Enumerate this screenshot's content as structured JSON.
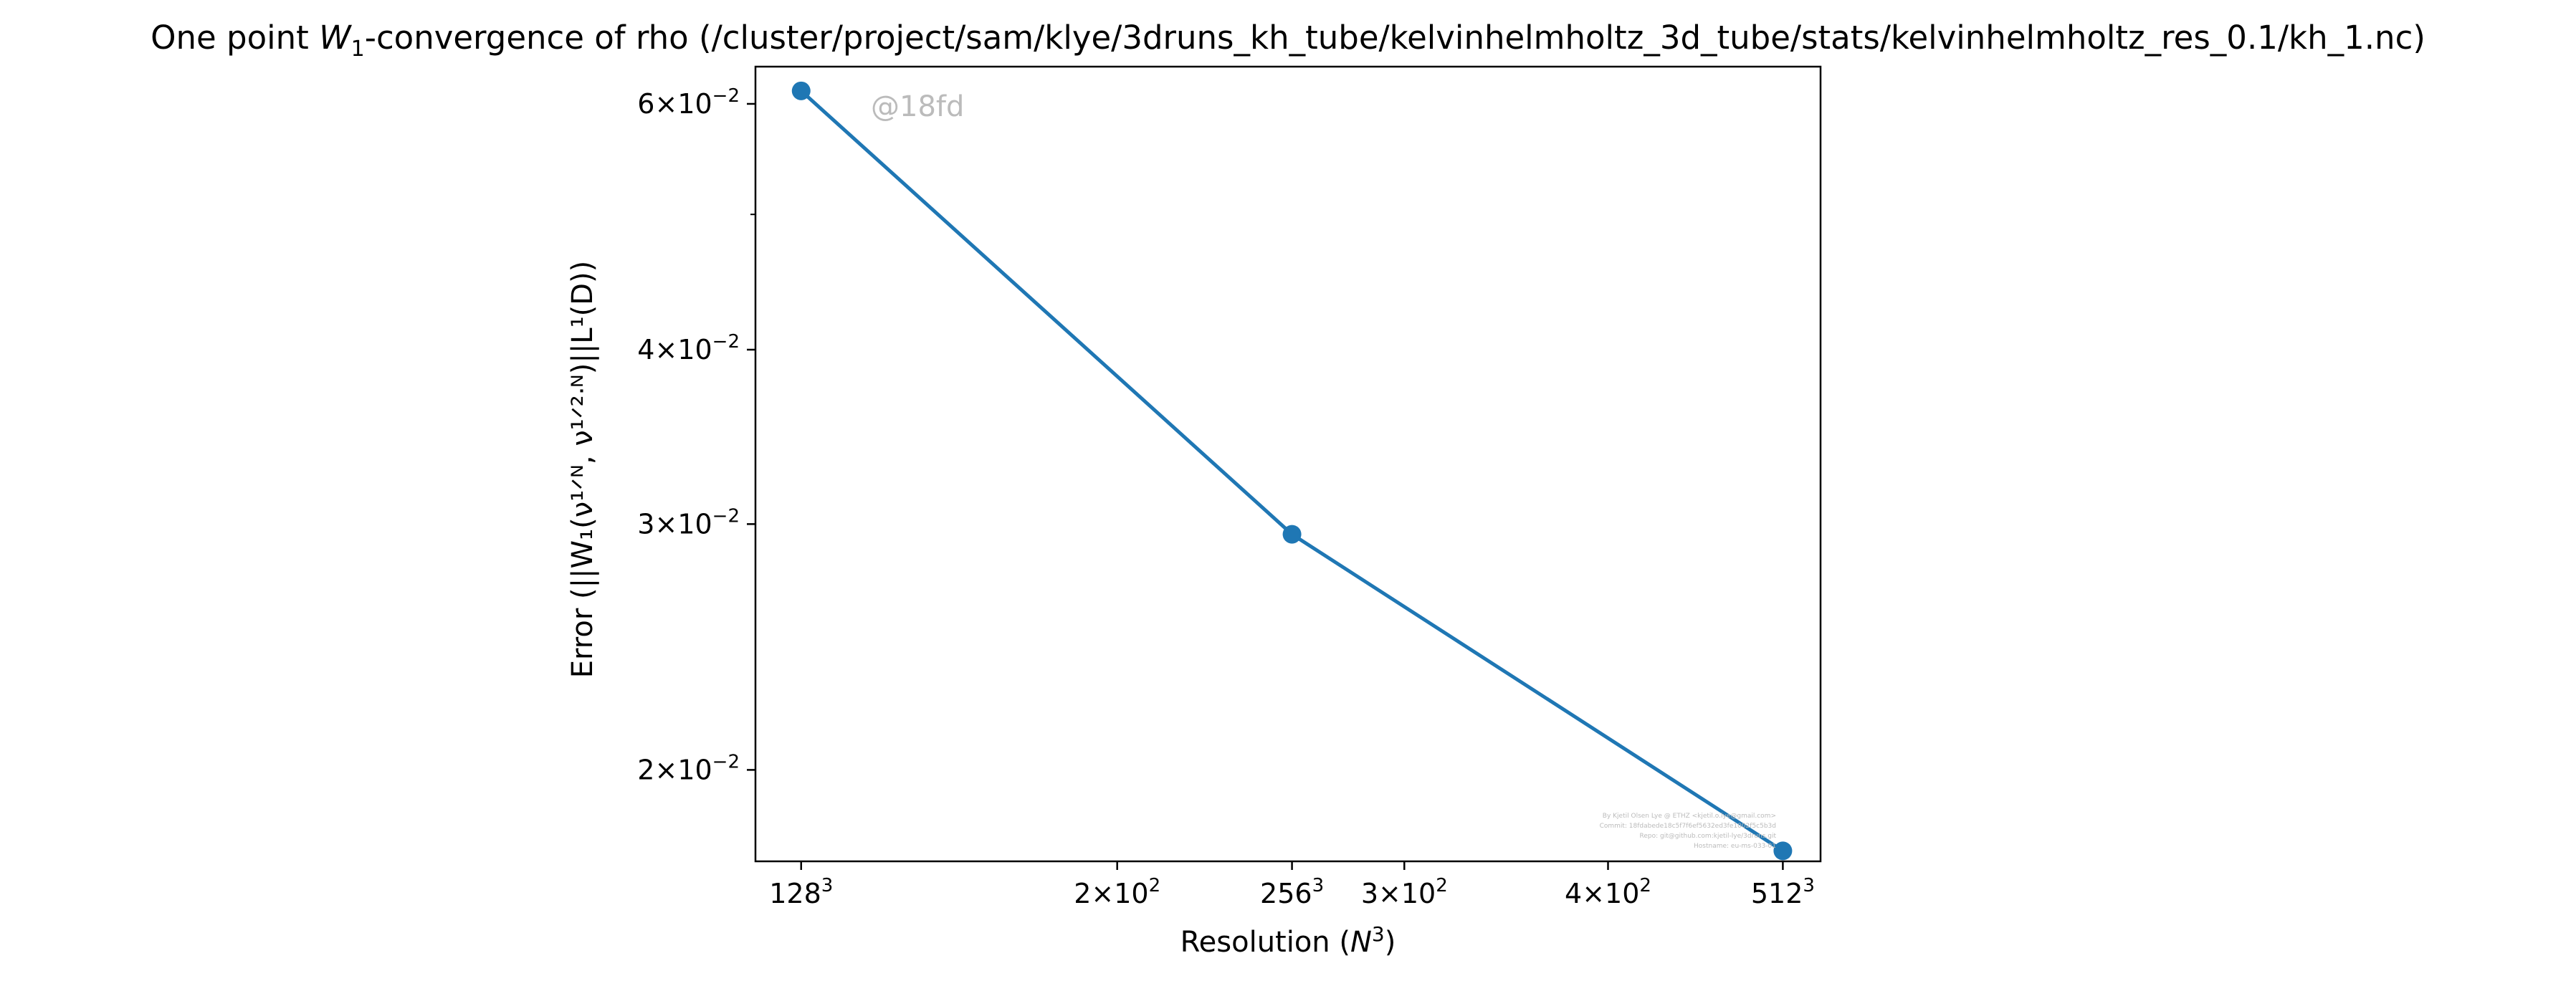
{
  "chart_data": {
    "type": "line",
    "title_prefix": "One point ",
    "title_sym": "W",
    "title_sub": "1",
    "title_suffix": "-convergence of rho (/cluster/project/sam/klye/3druns_kh_tube/kelvinhelmholtz_3d_tube/stats/kelvinhelmholtz_res_0.1/kh_1.nc)",
    "xlabel_prefix": "Resolution (",
    "xlabel_sym": "N",
    "xlabel_sup": "3",
    "xlabel_suffix": ")",
    "ylabel": "Error (||W₁(ν¹ᐟᴺ, ν¹ᐟ²ᐧᴺ)||L¹(D))",
    "x_scale": "log",
    "y_scale": "log",
    "xlim": [
      120,
      540
    ],
    "ylim": [
      0.0172,
      0.0638
    ],
    "grid": false,
    "series_color": "#1f77b4",
    "x": [
      128,
      256,
      512
    ],
    "y": [
      0.0613,
      0.0295,
      0.0175
    ],
    "x_ticks": [
      {
        "value": 128,
        "base": "128",
        "exp": "3"
      },
      {
        "value": 200,
        "base": "2×10",
        "exp": "2"
      },
      {
        "value": 256,
        "base": "256",
        "exp": "3"
      },
      {
        "value": 300,
        "base": "3×10",
        "exp": "2"
      },
      {
        "value": 400,
        "base": "4×10",
        "exp": "2"
      },
      {
        "value": 512,
        "base": "512",
        "exp": "3"
      }
    ],
    "y_ticks": [
      {
        "value": 0.02,
        "base": "2×10",
        "exp": "−2"
      },
      {
        "value": 0.03,
        "base": "3×10",
        "exp": "−2"
      },
      {
        "value": 0.04,
        "base": "4×10",
        "exp": "−2"
      },
      {
        "value": 0.06,
        "base": "6×10",
        "exp": "−2"
      }
    ],
    "y_minor_ticks": [
      0.05
    ]
  },
  "watermark": "@18fd",
  "footer_lines": [
    "By Kjetil Olsen Lye @ ETHZ <kjetil.o.lye@gmail.com>",
    "Commit: 18fdabede18c5f7f6ef5632ed3fe1002f5c5b3d",
    "Repo: git@github.com:kjetil-lye/3druns.git",
    "Hostname: eu-ms-033-01"
  ]
}
